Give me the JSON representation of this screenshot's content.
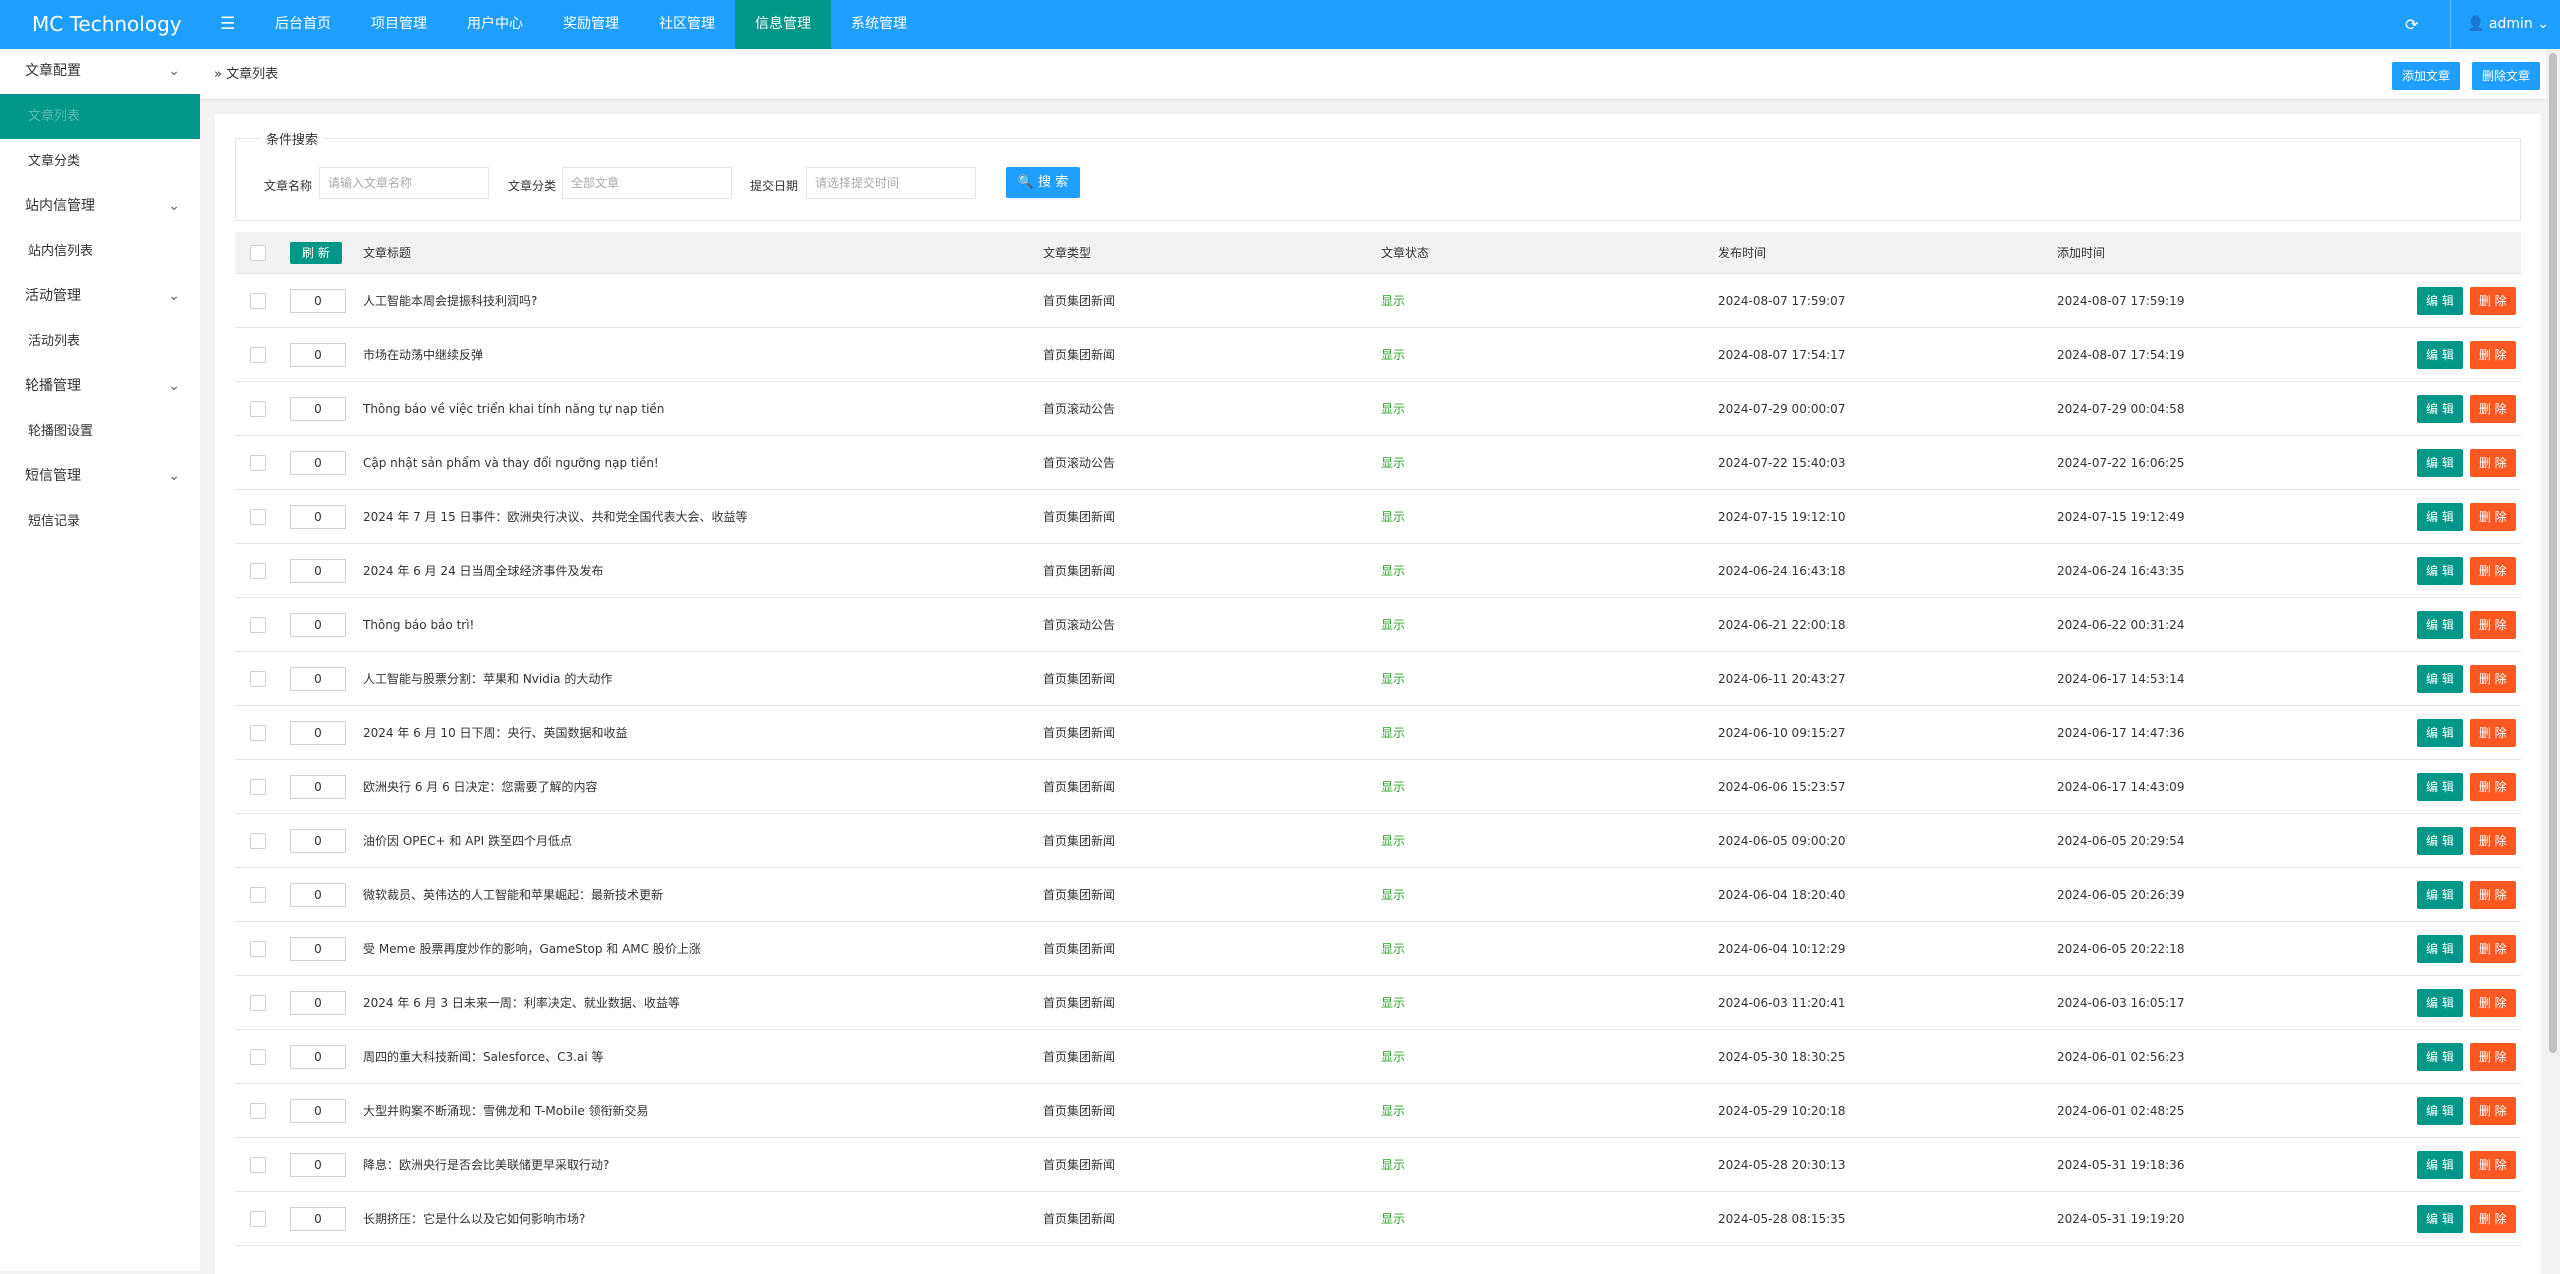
{
  "header": {
    "logo": "MC Technology",
    "nav": [
      "后台首页",
      "项目管理",
      "用户中心",
      "奖励管理",
      "社区管理",
      "信息管理",
      "系统管理"
    ],
    "active_nav": 5,
    "user": "admin"
  },
  "sidebar": {
    "items": [
      {
        "label": "文章配置",
        "group": true
      },
      {
        "label": "文章列表",
        "group": false
      },
      {
        "label": "文章分类",
        "group": false
      },
      {
        "label": "站内信管理",
        "group": true
      },
      {
        "label": "站内信列表",
        "group": false
      },
      {
        "label": "活动管理",
        "group": true
      },
      {
        "label": "活动列表",
        "group": false
      },
      {
        "label": "轮播管理",
        "group": true
      },
      {
        "label": "轮播图设置",
        "group": false
      },
      {
        "label": "短信管理",
        "group": true
      },
      {
        "label": "短信记录",
        "group": false
      }
    ],
    "active": 1
  },
  "breadcrumb": "文章列表",
  "toolbar": [
    "添加文章",
    "删除文章"
  ],
  "search": {
    "legend": "条件搜索",
    "fields": [
      {
        "label": "文章名称",
        "placeholder": "请输入文章名称"
      },
      {
        "label": "文章分类",
        "placeholder": "全部文章"
      },
      {
        "label": "提交日期",
        "placeholder": "请选择提交时间"
      }
    ],
    "button": "搜 索"
  },
  "table": {
    "refresh": "刷 新",
    "columns": [
      "文章标题",
      "文章类型",
      "文章状态",
      "发布时间",
      "添加时间"
    ],
    "actions": [
      "编 辑",
      "删 除"
    ],
    "rows": [
      {
        "sort": 0,
        "title": "人工智能本周会提振科技利润吗?",
        "type": "首页集团新闻",
        "status": "显示",
        "published": "2024-08-07 17:59:07",
        "added": "2024-08-07 17:59:19"
      },
      {
        "sort": 0,
        "title": "市场在动荡中继续反弹",
        "type": "首页集团新闻",
        "status": "显示",
        "published": "2024-08-07 17:54:17",
        "added": "2024-08-07 17:54:19"
      },
      {
        "sort": 0,
        "title": "Thông báo về việc triển khai tính năng tự nạp tiền",
        "type": "首页滚动公告",
        "status": "显示",
        "published": "2024-07-29 00:00:07",
        "added": "2024-07-29 00:04:58"
      },
      {
        "sort": 0,
        "title": "Cập nhật sản phẩm và thay đổi ngưỡng nạp tiền!",
        "type": "首页滚动公告",
        "status": "显示",
        "published": "2024-07-22 15:40:03",
        "added": "2024-07-22 16:06:25"
      },
      {
        "sort": 0,
        "title": "2024 年 7 月 15 日事件：欧洲央行决议、共和党全国代表大会、收益等",
        "type": "首页集团新闻",
        "status": "显示",
        "published": "2024-07-15 19:12:10",
        "added": "2024-07-15 19:12:49"
      },
      {
        "sort": 0,
        "title": "2024 年 6 月 24 日当周全球经济事件及发布",
        "type": "首页集团新闻",
        "status": "显示",
        "published": "2024-06-24 16:43:18",
        "added": "2024-06-24 16:43:35"
      },
      {
        "sort": 0,
        "title": "Thông báo bảo trì!",
        "type": "首页滚动公告",
        "status": "显示",
        "published": "2024-06-21 22:00:18",
        "added": "2024-06-22 00:31:24"
      },
      {
        "sort": 0,
        "title": "人工智能与股票分割：苹果和 Nvidia 的大动作",
        "type": "首页集团新闻",
        "status": "显示",
        "published": "2024-06-11 20:43:27",
        "added": "2024-06-17 14:53:14"
      },
      {
        "sort": 0,
        "title": "2024 年 6 月 10 日下周：央行、英国数据和收益",
        "type": "首页集团新闻",
        "status": "显示",
        "published": "2024-06-10 09:15:27",
        "added": "2024-06-17 14:47:36"
      },
      {
        "sort": 0,
        "title": "欧洲央行 6 月 6 日决定：您需要了解的内容",
        "type": "首页集团新闻",
        "status": "显示",
        "published": "2024-06-06 15:23:57",
        "added": "2024-06-17 14:43:09"
      },
      {
        "sort": 0,
        "title": "油价因 OPEC+ 和 API 跌至四个月低点",
        "type": "首页集团新闻",
        "status": "显示",
        "published": "2024-06-05 09:00:20",
        "added": "2024-06-05 20:29:54"
      },
      {
        "sort": 0,
        "title": "微软裁员、英伟达的人工智能和苹果崛起：最新技术更新",
        "type": "首页集团新闻",
        "status": "显示",
        "published": "2024-06-04 18:20:40",
        "added": "2024-06-05 20:26:39"
      },
      {
        "sort": 0,
        "title": "受 Meme 股票再度炒作的影响，GameStop 和 AMC 股价上涨",
        "type": "首页集团新闻",
        "status": "显示",
        "published": "2024-06-04 10:12:29",
        "added": "2024-06-05 20:22:18"
      },
      {
        "sort": 0,
        "title": "2024 年 6 月 3 日未来一周：利率决定、就业数据、收益等",
        "type": "首页集团新闻",
        "status": "显示",
        "published": "2024-06-03 11:20:41",
        "added": "2024-06-03 16:05:17"
      },
      {
        "sort": 0,
        "title": "周四的重大科技新闻：Salesforce、C3.ai 等",
        "type": "首页集团新闻",
        "status": "显示",
        "published": "2024-05-30 18:30:25",
        "added": "2024-06-01 02:56:23"
      },
      {
        "sort": 0,
        "title": "大型并购案不断涌现：雪佛龙和 T-Mobile 领衔新交易",
        "type": "首页集团新闻",
        "status": "显示",
        "published": "2024-05-29 10:20:18",
        "added": "2024-06-01 02:48:25"
      },
      {
        "sort": 0,
        "title": "降息：欧洲央行是否会比美联储更早采取行动?",
        "type": "首页集团新闻",
        "status": "显示",
        "published": "2024-05-28 20:30:13",
        "added": "2024-05-31 19:18:36"
      },
      {
        "sort": 0,
        "title": "长期挤压：它是什么以及它如何影响市场?",
        "type": "首页集团新闻",
        "status": "显示",
        "published": "2024-05-28 08:15:35",
        "added": "2024-05-31 19:19:20"
      }
    ]
  }
}
